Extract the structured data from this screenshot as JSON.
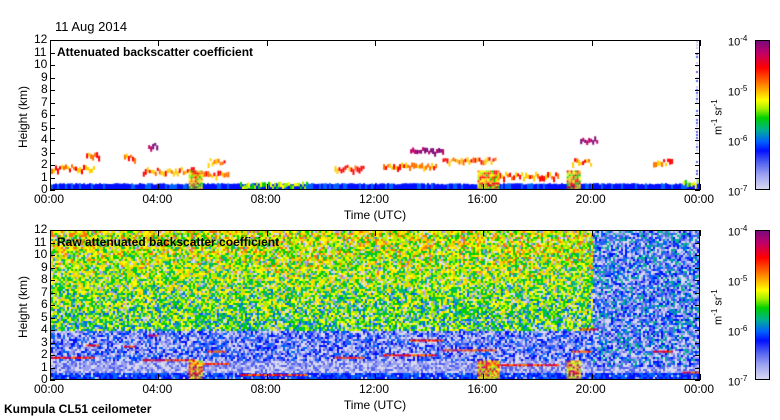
{
  "date": "11 Aug 2014",
  "footer": "Kumpula CL51 ceilometer",
  "chart_data": [
    {
      "type": "heatmap",
      "title": "Attenuated backscatter coefficient",
      "xlabel": "Time (UTC)",
      "ylabel": "Height (km)",
      "xlim_hours": [
        0,
        24
      ],
      "ylim": [
        0,
        12
      ],
      "xticks": [
        "00:00",
        "04:00",
        "08:00",
        "12:00",
        "16:00",
        "20:00",
        "00:00"
      ],
      "yticks": [
        "0",
        "1",
        "2",
        "3",
        "4",
        "5",
        "6",
        "7",
        "8",
        "9",
        "10",
        "11",
        "12"
      ],
      "colorbar": {
        "scale": "log",
        "range": [
          1e-07,
          0.0001
        ],
        "ticks": [
          {
            "base": "10",
            "exp": "-4"
          },
          {
            "base": "10",
            "exp": "-5"
          },
          {
            "base": "10",
            "exp": "-6"
          },
          {
            "base": "10",
            "exp": "-7"
          }
        ],
        "unit_base1": "m",
        "unit_exp1": "-1",
        "unit_base2": " sr",
        "unit_exp2": "-1"
      },
      "cloud_layers": [
        {
          "t0": 0.0,
          "t1": 1.6,
          "h": 1.8,
          "level": "high"
        },
        {
          "t0": 1.3,
          "t1": 1.8,
          "h": 2.8,
          "level": "high"
        },
        {
          "t0": 2.7,
          "t1": 3.1,
          "h": 2.7,
          "level": "high"
        },
        {
          "t0": 3.4,
          "t1": 5.3,
          "h": 1.6,
          "level": "high"
        },
        {
          "t0": 3.6,
          "t1": 3.9,
          "h": 3.6,
          "level": "max"
        },
        {
          "t0": 5.2,
          "t1": 6.6,
          "h": 1.3,
          "level": "high"
        },
        {
          "t0": 5.8,
          "t1": 6.4,
          "h": 2.3,
          "level": "high"
        },
        {
          "t0": 7.0,
          "t1": 9.5,
          "h": 0.4,
          "level": "mid"
        },
        {
          "t0": 10.5,
          "t1": 11.6,
          "h": 1.8,
          "level": "high"
        },
        {
          "t0": 12.3,
          "t1": 14.3,
          "h": 2.0,
          "level": "high"
        },
        {
          "t0": 13.3,
          "t1": 14.5,
          "h": 3.2,
          "level": "max"
        },
        {
          "t0": 14.5,
          "t1": 16.5,
          "h": 2.4,
          "level": "high"
        },
        {
          "t0": 16.3,
          "t1": 18.8,
          "h": 1.2,
          "level": "high"
        },
        {
          "t0": 19.3,
          "t1": 20.0,
          "h": 2.3,
          "level": "high"
        },
        {
          "t0": 19.6,
          "t1": 20.2,
          "h": 4.1,
          "level": "max"
        },
        {
          "t0": 22.3,
          "t1": 23.0,
          "h": 2.3,
          "level": "high"
        },
        {
          "t0": 23.4,
          "t1": 24.0,
          "h": 0.6,
          "level": "mid"
        }
      ],
      "boundary_layer_top_km": 0.4
    },
    {
      "type": "heatmap",
      "title": "Raw attenuated backscatter coefficient",
      "xlabel": "Time (UTC)",
      "ylabel": "Height (km)",
      "xlim_hours": [
        0,
        24
      ],
      "ylim": [
        0,
        12
      ],
      "xticks": [
        "00:00",
        "04:00",
        "08:00",
        "12:00",
        "16:00",
        "20:00",
        "00:00"
      ],
      "yticks": [
        "0",
        "1",
        "2",
        "3",
        "4",
        "5",
        "6",
        "7",
        "8",
        "9",
        "10",
        "11",
        "12"
      ],
      "colorbar": {
        "scale": "log",
        "range": [
          1e-07,
          0.0001
        ],
        "ticks": [
          {
            "base": "10",
            "exp": "-4"
          },
          {
            "base": "10",
            "exp": "-5"
          },
          {
            "base": "10",
            "exp": "-6"
          },
          {
            "base": "10",
            "exp": "-7"
          }
        ],
        "unit_base1": "m",
        "unit_exp1": "-1",
        "unit_base2": " sr",
        "unit_exp2": "-1"
      }
    }
  ],
  "colors": {
    "low": "#d8d8f0",
    "blue": "#0010ff",
    "green": "#00d000",
    "yellow": "#ffff00",
    "red": "#ff0000",
    "max": "#7a0a7a"
  }
}
